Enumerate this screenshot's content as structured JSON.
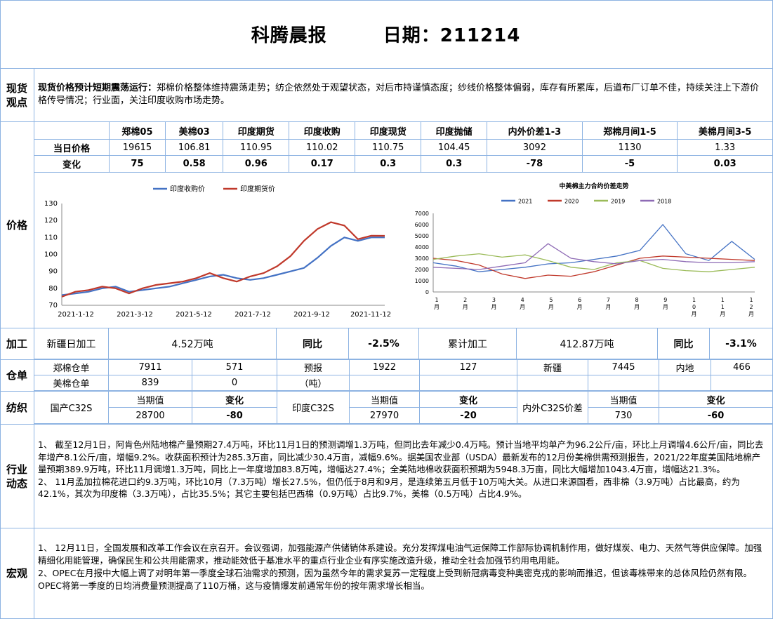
{
  "header": {
    "title": "科腾晨报",
    "date": "日期：211214"
  },
  "spot": {
    "label": "现货观点",
    "heading": "现货价格预计短期震荡运行：",
    "text": "郑棉价格整体维持震荡走势；纺企依然处于观望状态，对后市持谨慎态度；纱线价格整体偏弱，库存有所累库，后道布厂订单不佳，持续关注上下游价格传导情况；行业面，关注印度收购市场走势。"
  },
  "price": {
    "label": "价格",
    "columns": [
      "郑棉05",
      "美棉03",
      "印度期货",
      "印度收购",
      "印度现货",
      "印度抛储",
      "内外价差1-3",
      "郑棉月间1-5",
      "美棉月间3-5"
    ],
    "rows": [
      {
        "name": "当日价格",
        "values": [
          "19615",
          "106.81",
          "110.95",
          "110.02",
          "110.75",
          "104.45",
          "3092",
          "1130",
          "1.33"
        ]
      },
      {
        "name": "变化",
        "values": [
          "75",
          "0.58",
          "0.96",
          "0.17",
          "0.3",
          "0.3",
          "-78",
          "-5",
          "0.03"
        ]
      }
    ]
  },
  "chart_data": [
    {
      "type": "line",
      "title": "",
      "xlabel": "",
      "ylabel": "",
      "ylim": [
        70,
        130
      ],
      "yticks": [
        "130",
        "120",
        "110",
        "100",
        "90",
        "80",
        "70"
      ],
      "xticks": [
        "2021-1-12",
        "2021-3-12",
        "2021-5-12",
        "2021-7-12",
        "2021-9-12",
        "2021-11-12"
      ],
      "legend": "top",
      "colors": [
        "#4472c4",
        "#c0392b"
      ],
      "series": [
        {
          "name": "印度收购价",
          "values": [
            76,
            77,
            78,
            80,
            81,
            78,
            79,
            80,
            81,
            83,
            85,
            87,
            88,
            86,
            85,
            86,
            88,
            90,
            92,
            98,
            105,
            110,
            108,
            110,
            110.02
          ]
        },
        {
          "name": "印度期货价",
          "values": [
            75,
            78,
            79,
            81,
            80,
            77,
            80,
            82,
            83,
            84,
            86,
            89,
            86,
            84,
            87,
            89,
            93,
            99,
            108,
            115,
            119,
            117,
            109,
            111,
            110.95
          ]
        }
      ]
    },
    {
      "type": "line",
      "title": "中美棉主力合约价差走势",
      "xlabel": "",
      "ylabel": "",
      "ylim": [
        0,
        7000
      ],
      "yticks": [
        "7000",
        "6000",
        "5000",
        "4000",
        "3000",
        "2000",
        "1000",
        "0"
      ],
      "xticks": [
        "1\n月",
        "2\n月",
        "3\n月",
        "4\n月",
        "5\n月",
        "6\n月",
        "7\n月",
        "8\n月",
        "9\n月",
        "1\n0\n月",
        "1\n1\n月",
        "1\n2\n月"
      ],
      "legend": "top",
      "colors": [
        "#4472c4",
        "#c0392b",
        "#9bbb59",
        "#8e6bb5"
      ],
      "series": [
        {
          "name": "2021",
          "values": [
            2600,
            2300,
            1800,
            2000,
            2200,
            2500,
            2600,
            2900,
            3200,
            3700,
            6000,
            3400,
            2800,
            4500,
            2900
          ]
        },
        {
          "name": "2020",
          "values": [
            3000,
            2800,
            2400,
            1600,
            1200,
            1500,
            1400,
            1800,
            2400,
            3000,
            3200,
            3100,
            3000,
            2900,
            2800
          ]
        },
        {
          "name": "2019",
          "values": [
            2900,
            3200,
            3400,
            3100,
            3300,
            2800,
            2200,
            2000,
            2600,
            2800,
            2100,
            1900,
            1800,
            2000,
            2200
          ]
        },
        {
          "name": "2018",
          "values": [
            2200,
            2100,
            2000,
            2300,
            2600,
            4300,
            3000,
            2700,
            2500,
            2800,
            2900,
            2700,
            2600,
            2600,
            2700
          ]
        }
      ]
    }
  ],
  "processing": {
    "label": "加工",
    "xj_label": "新疆日加工",
    "xj_value": "4.52万吨",
    "yoy1_label": "同比",
    "yoy1_value": "-2.5%",
    "cum_label": "累计加工",
    "cum_value": "412.87万吨",
    "yoy2_label": "同比",
    "yoy2_value": "-3.1%"
  },
  "warehouse": {
    "label": "仓单",
    "r1": [
      "郑棉仓单",
      "7911",
      "571",
      "预报",
      "1922",
      "127",
      "新疆",
      "7445",
      "内地",
      "466"
    ],
    "r2": [
      "美棉仓单",
      "839",
      "0",
      "（吨）"
    ]
  },
  "spinning": {
    "label": "纺织",
    "h": [
      "国产C32S",
      "当期值",
      "变化",
      "印度C32S",
      "当期值",
      "变化",
      "内外C32S价差",
      "当期值",
      "变化"
    ],
    "v": [
      "28700",
      "-80",
      "27970",
      "-20",
      "730",
      "-60"
    ]
  },
  "industry": {
    "label": "行业动态",
    "p1": "1、  截至12月1日，阿肯色州陆地棉产量预期27.4万吨，环比11月1日的预测调增1.3万吨，但同比去年减少0.4万吨。预计当地平均单产为96.2公斤/亩，环比上月调增4.6公斤/亩，同比去年增产8.1公斤/亩，增幅9.2%。收获面积预计为285.3万亩，同比减少30.4万亩，减幅9.6%。据美国农业部（USDA）最新发布的12月份美棉供需预测报告，2021/22年度美国陆地棉产量预期389.9万吨，环比11月调增1.3万吨，同比上一年度增加83.8万吨，增幅达27.4%；全美陆地棉收获面积预期为5948.3万亩，同比大幅增加1043.4万亩，增幅达21.3%。",
    "p2": "2、  11月孟加拉棉花进口约9.3万吨，环比10月（7.3万吨）增长27.5%，但仍低于8月和9月，是连续第五月低于10万吨大关。从进口来源国看，西非棉（3.9万吨）占比最高，约为42.1%，其次为印度棉（3.3万吨），占比35.5%；其它主要包括巴西棉（0.9万吨）占比9.7%，美棉（0.5万吨）占比4.9%。"
  },
  "macro": {
    "label": "宏观",
    "p1": "1、  12月11日，全国发展和改革工作会议在京召开。会议强调，加强能源产供储销体系建设。充分发挥煤电油气运保障工作部际协调机制作用，做好煤炭、电力、天然气等供应保障。加强精细化用能管理，确保民生和公共用能需求，推动能效低于基准水平的重点行业企业有序实施改造升级，推动全社会加强节约用电用能。",
    "p2": "2、OPEC在月报中大幅上调了对明年第一季度全球石油需求的预测，因为虽然今年的需求复苏一定程度上受到新冠病毒变种奥密克戎的影响而推迟，但该毒株带来的总体风险仍然有限。OPEC将第一季度的日均消费量预测提高了110万桶，这与疫情爆发前通常年份的按年需求增长相当。"
  }
}
